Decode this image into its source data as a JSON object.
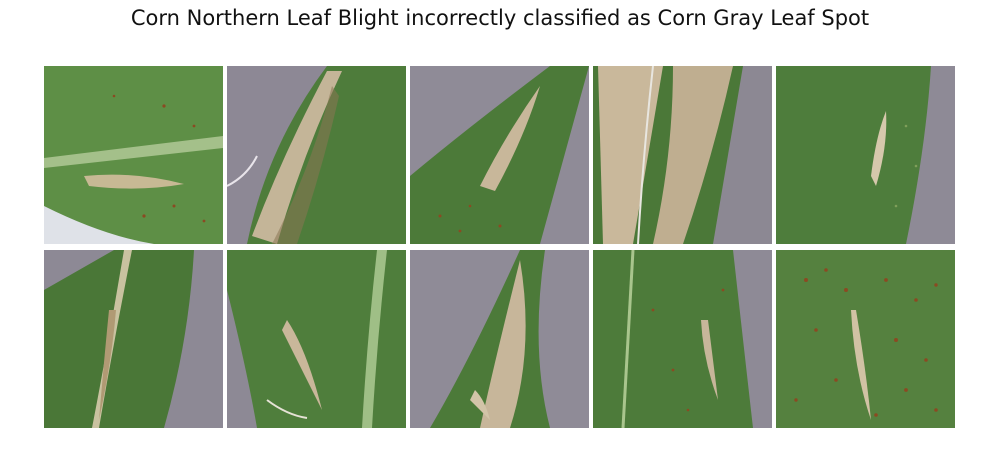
{
  "title": "Corn Northern Leaf Blight incorrectly classified as Corn Gray Leaf Spot",
  "images": [
    {
      "name": "leaf-image-1"
    },
    {
      "name": "leaf-image-2"
    },
    {
      "name": "leaf-image-3"
    },
    {
      "name": "leaf-image-4"
    },
    {
      "name": "leaf-image-5"
    },
    {
      "name": "leaf-image-6"
    },
    {
      "name": "leaf-image-7"
    },
    {
      "name": "leaf-image-8"
    },
    {
      "name": "leaf-image-9"
    },
    {
      "name": "leaf-image-10"
    }
  ],
  "colors": {
    "leaf_dark": "#3f6b33",
    "leaf_mid": "#4f7f3c",
    "leaf_light": "#6f9a55",
    "lesion": "#c9b79a",
    "lesion_edge": "#8a7453",
    "background_gray": "#8e8a96",
    "spot_rust": "#8b4a22"
  }
}
